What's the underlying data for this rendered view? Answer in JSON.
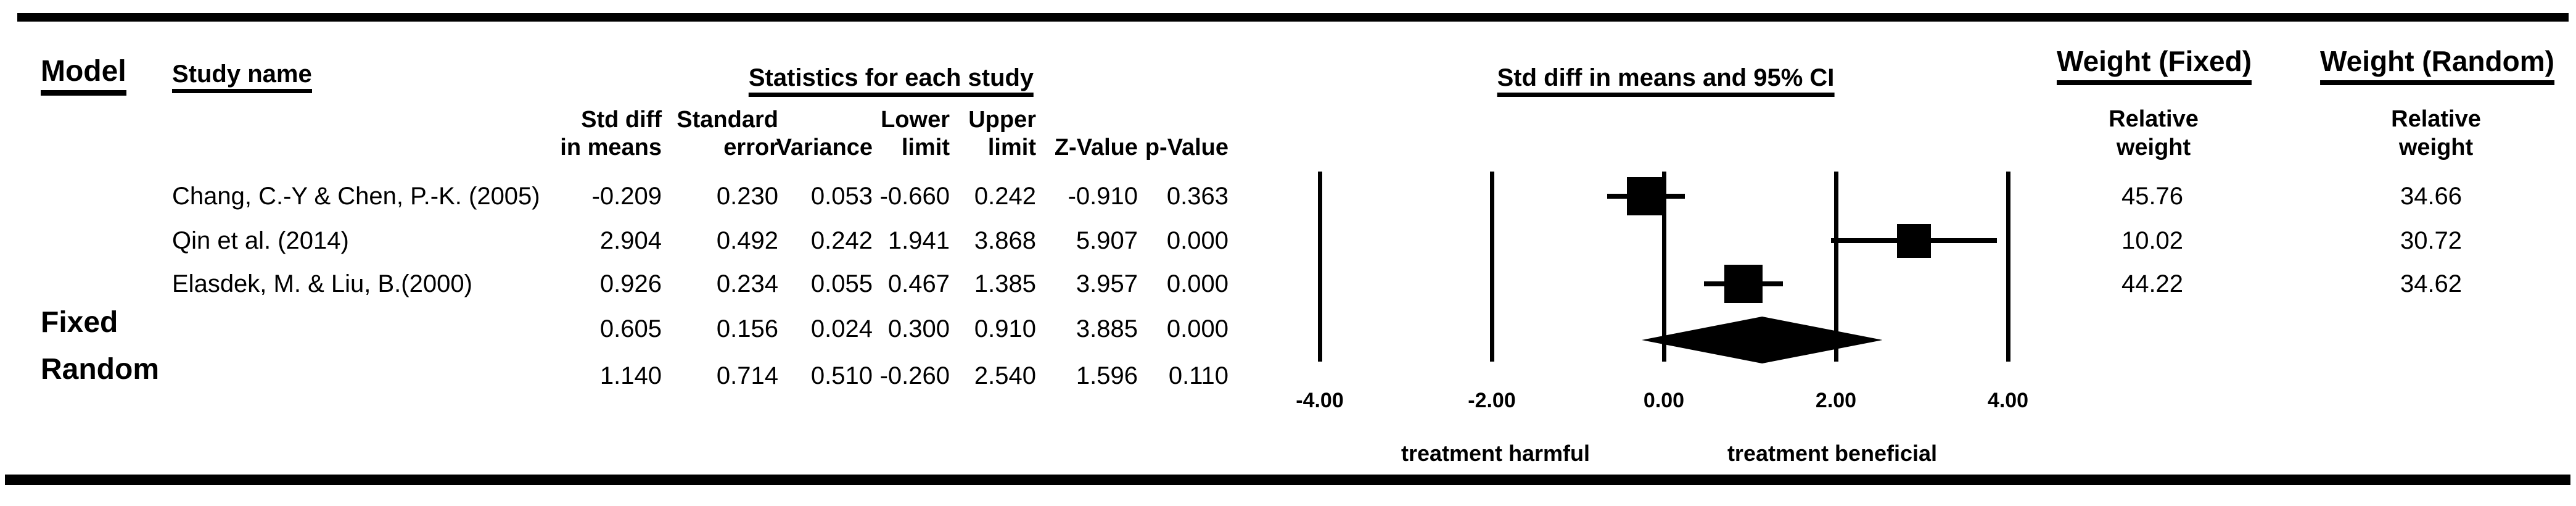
{
  "colors": {
    "ink": "#000000",
    "background": "#ffffff"
  },
  "header": {
    "model": "Model",
    "study_name": "Study name",
    "statistics": "Statistics for each study",
    "plot": "Std diff in means and 95% CI",
    "weight_fixed": "Weight (Fixed)",
    "weight_random": "Weight (Random)",
    "weight_sub": {
      "line1": "Relative",
      "line2": "weight"
    },
    "stat_columns": [
      {
        "line1": "Std diff",
        "line2": "in means"
      },
      {
        "line1": "Standard",
        "line2": "error"
      },
      {
        "line1": "",
        "line2": "Variance"
      },
      {
        "line1": "Lower",
        "line2": "limit"
      },
      {
        "line1": "Upper",
        "line2": "limit"
      },
      {
        "line1": "",
        "line2": "Z-Value"
      },
      {
        "line1": "",
        "line2": "p-Value"
      }
    ]
  },
  "rows": [
    {
      "model": "",
      "study": "Chang, C.-Y & Chen, P.-K. (2005)",
      "stats": [
        "-0.209",
        "0.230",
        "0.053",
        "-0.660",
        "0.242",
        "-0.910",
        "0.363"
      ],
      "weight_fixed": "45.76",
      "weight_random": "34.66"
    },
    {
      "model": "",
      "study": "Qin et al. (2014)",
      "stats": [
        "2.904",
        "0.492",
        "0.242",
        "1.941",
        "3.868",
        "5.907",
        "0.000"
      ],
      "weight_fixed": "10.02",
      "weight_random": "30.72"
    },
    {
      "model": "",
      "study": "Elasdek, M. & Liu, B.(2000)",
      "stats": [
        "0.926",
        "0.234",
        "0.055",
        "0.467",
        "1.385",
        "3.957",
        "0.000"
      ],
      "weight_fixed": "44.22",
      "weight_random": "34.62"
    },
    {
      "model": "Fixed",
      "study": "",
      "stats": [
        "0.605",
        "0.156",
        "0.024",
        "0.300",
        "0.910",
        "3.885",
        "0.000"
      ],
      "weight_fixed": "",
      "weight_random": ""
    },
    {
      "model": "Random",
      "study": "",
      "stats": [
        "1.140",
        "0.714",
        "0.510",
        "-0.260",
        "2.540",
        "1.596",
        "0.110"
      ],
      "weight_fixed": "",
      "weight_random": ""
    }
  ],
  "plot": {
    "left_annotation": "treatment harmful",
    "right_annotation": "treatment beneficial"
  },
  "chart_data": {
    "type": "scatter",
    "subtype": "forest-plot-meta-analysis",
    "title": "Std diff in means and 95% CI",
    "xlim": [
      -4.6,
      4.6
    ],
    "x_ticks": [
      -4,
      -2,
      0,
      2,
      4
    ],
    "x_tick_labels": [
      "-4.00",
      "-2.00",
      "0.00",
      "2.00",
      "4.00"
    ],
    "x_annotation_left": "treatment harmful",
    "x_annotation_right": "treatment beneficial",
    "grid": "vertical-lines-at-ticks",
    "marker_color": "#000000",
    "studies": [
      {
        "name": "Chang, C.-Y & Chen, P.-K. (2005)",
        "std_diff": -0.209,
        "se": 0.23,
        "variance": 0.053,
        "lower": -0.66,
        "upper": 0.242,
        "z": -0.91,
        "p": 0.363,
        "weight_fixed": 45.76,
        "weight_random": 34.66
      },
      {
        "name": "Qin et al. (2014)",
        "std_diff": 2.904,
        "se": 0.492,
        "variance": 0.242,
        "lower": 1.941,
        "upper": 3.868,
        "z": 5.907,
        "p": 0.0,
        "weight_fixed": 10.02,
        "weight_random": 30.72
      },
      {
        "name": "Elasdek, M. & Liu, B.(2000)",
        "std_diff": 0.926,
        "se": 0.234,
        "variance": 0.055,
        "lower": 0.467,
        "upper": 1.385,
        "z": 3.957,
        "p": 0.0,
        "weight_fixed": 44.22,
        "weight_random": 34.62
      }
    ],
    "summaries": [
      {
        "model": "Fixed",
        "std_diff": 0.605,
        "se": 0.156,
        "variance": 0.024,
        "lower": 0.3,
        "upper": 0.91,
        "z": 3.885,
        "p": 0.0
      },
      {
        "model": "Random",
        "std_diff": 1.14,
        "se": 0.714,
        "variance": 0.51,
        "lower": -0.26,
        "upper": 2.54,
        "z": 1.596,
        "p": 0.11
      }
    ],
    "diamond": {
      "estimate": 1.14,
      "lower": -0.26,
      "upper": 2.54
    }
  }
}
